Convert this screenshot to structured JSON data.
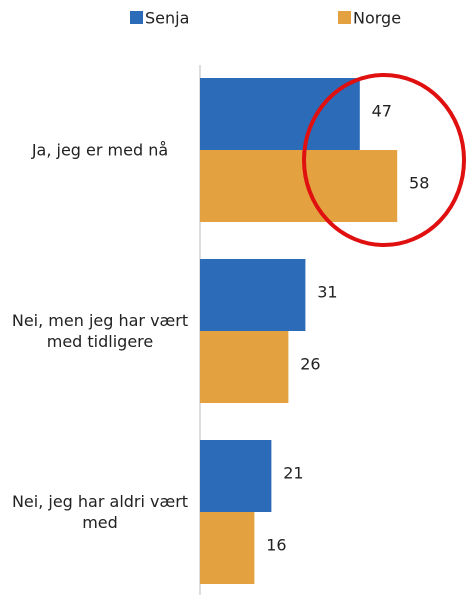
{
  "chart_data": {
    "type": "bar",
    "orientation": "horizontal",
    "categories": [
      "Ja, jeg er med nå",
      "Nei, men jeg har vært med tidligere",
      "Nei, jeg har aldri vært med"
    ],
    "series": [
      {
        "name": "Senja",
        "color": "#2b6bb8",
        "values": [
          47,
          31,
          21
        ]
      },
      {
        "name": "Norge",
        "color": "#e3a13f",
        "values": [
          58,
          26,
          16
        ]
      }
    ],
    "legend": "top"
  }
}
